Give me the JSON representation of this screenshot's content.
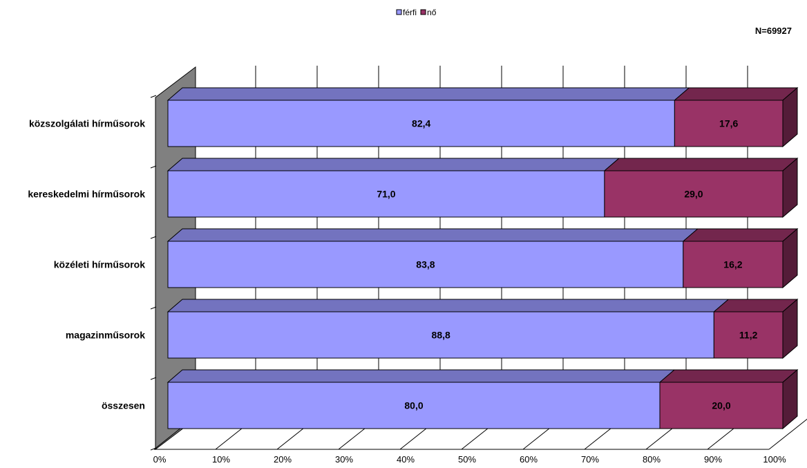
{
  "chart_data": {
    "type": "bar",
    "stacked": true,
    "percent_stacked": true,
    "three_d": true,
    "orientation": "horizontal",
    "annotation": "N=69927",
    "legend_position": "top",
    "categories": [
      "közszolgálati hírműsorok",
      "kereskedelmi hírműsorok",
      "közéleti hírműsorok",
      "magazinműsorok",
      "összesen"
    ],
    "series": [
      {
        "name": "férfi",
        "color": "#9999ff",
        "values": [
          82.4,
          71.0,
          83.8,
          88.8,
          80.0
        ],
        "labels": [
          "82,4",
          "71,0",
          "83,8",
          "88,8",
          "80,0"
        ]
      },
      {
        "name": "nő",
        "color": "#993366",
        "values": [
          17.6,
          29.0,
          16.2,
          11.2,
          20.0
        ],
        "labels": [
          "17,6",
          "29,0",
          "16,2",
          "11,2",
          "20,0"
        ]
      }
    ],
    "xlim": [
      0,
      100
    ],
    "x_ticks": [
      "0%",
      "10%",
      "20%",
      "30%",
      "40%",
      "50%",
      "60%",
      "70%",
      "80%",
      "90%",
      "100%"
    ],
    "grid": true
  }
}
